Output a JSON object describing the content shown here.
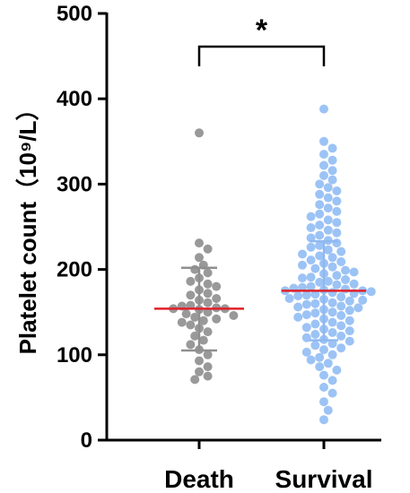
{
  "chart_data": {
    "type": "scatter",
    "subtype": "scatter-dot-plot",
    "categories": [
      "Death",
      "Survival"
    ],
    "ylabel": "Platelet count（10⁹/L）",
    "ylim": [
      0,
      500
    ],
    "yticks": [
      "0",
      "100",
      "200",
      "300",
      "400",
      "500"
    ],
    "grid": false,
    "significance": {
      "label": "*",
      "between": [
        "Death",
        "Survival"
      ]
    },
    "colors": {
      "Death": "#999999",
      "Survival": "#9cc3f5",
      "median_line": "#e0202a",
      "error_bar_death": "#8f8f8f",
      "error_bar_survival": "#8fb8f0",
      "axis": "#000000"
    },
    "series": [
      {
        "name": "Death",
        "median": 154,
        "mean_sd_upper": 202,
        "mean_sd_lower": 105,
        "values": [
          360,
          231,
          224,
          214,
          205,
          200,
          196,
          190,
          186,
          183,
          180,
          176,
          172,
          170,
          166,
          164,
          161,
          158,
          157,
          155,
          154,
          154,
          153,
          150,
          148,
          146,
          144,
          142,
          140,
          138,
          135,
          131,
          127,
          122,
          117,
          112,
          106,
          100,
          93,
          86,
          80,
          75,
          71
        ]
      },
      {
        "name": "Survival",
        "median": 175,
        "mean_sd_upper": 233,
        "mean_sd_lower": 117,
        "values": [
          388,
          350,
          342,
          335,
          328,
          322,
          316,
          310,
          305,
          300,
          296,
          292,
          288,
          284,
          280,
          276,
          272,
          268,
          265,
          262,
          258,
          255,
          252,
          249,
          246,
          243,
          240,
          237,
          234,
          231,
          228,
          226,
          223,
          221,
          218,
          216,
          214,
          211,
          209,
          207,
          205,
          203,
          201,
          199,
          197,
          195,
          193,
          191,
          190,
          188,
          186,
          185,
          183,
          182,
          180,
          179,
          178,
          177,
          176,
          175,
          175,
          174,
          173,
          172,
          171,
          170,
          169,
          168,
          166,
          165,
          164,
          163,
          161,
          160,
          159,
          157,
          156,
          155,
          153,
          152,
          150,
          149,
          147,
          146,
          144,
          142,
          140,
          138,
          136,
          134,
          132,
          130,
          128,
          126,
          124,
          122,
          120,
          118,
          116,
          113,
          111,
          108,
          106,
          103,
          100,
          97,
          94,
          90,
          86,
          82,
          76,
          70,
          62,
          55,
          45,
          35,
          24
        ]
      }
    ]
  }
}
